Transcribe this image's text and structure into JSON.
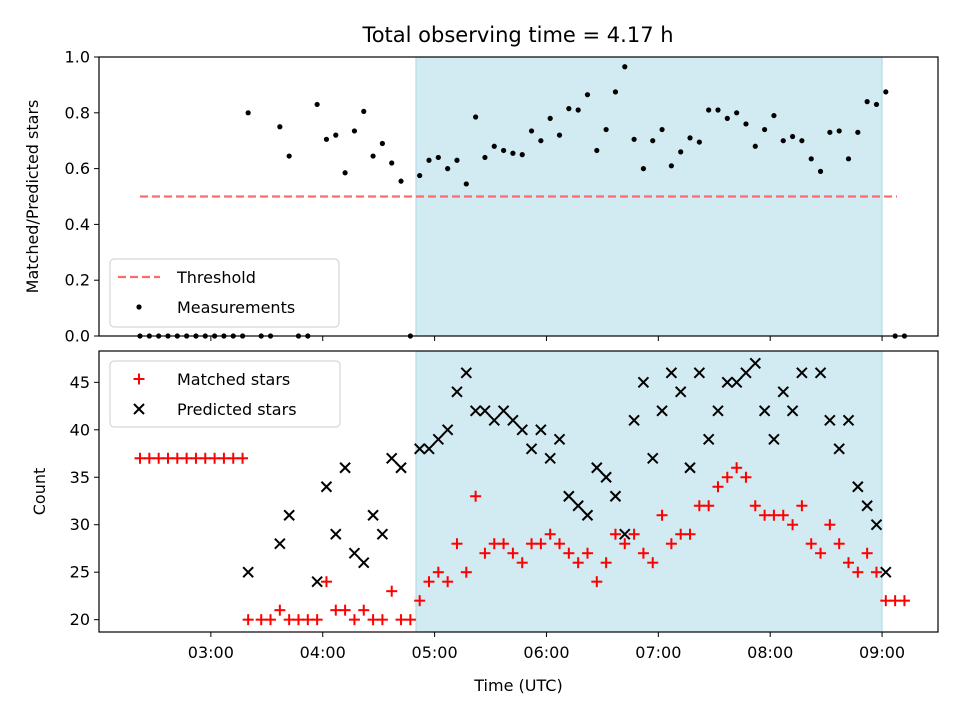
{
  "title": "Total observing time = 4.17 h",
  "colors": {
    "threshold": "#ff6b6b",
    "shade": "#add8e6",
    "measurement": "#000000",
    "matched": "#ff0000",
    "predicted": "#000000"
  },
  "chart_data": [
    {
      "type": "scatter",
      "ylabel": "Matched/Predicted stars",
      "xlabel": "",
      "xlim": [
        "02:00",
        "09:30"
      ],
      "ylim": [
        0,
        1.0
      ],
      "yticks": [
        0.0,
        0.2,
        0.4,
        0.6,
        0.8,
        1.0
      ],
      "ytick_labels": [
        "0.0",
        "0.2",
        "0.4",
        "0.6",
        "0.8",
        "1.0"
      ],
      "shaded_region": [
        "04:50",
        "09:00"
      ],
      "legend_position": "lower-left",
      "threshold": {
        "name": "Threshold",
        "y": 0.5,
        "x_range": [
          "02:22",
          "09:08"
        ]
      },
      "series": [
        {
          "name": "Measurements",
          "points": [
            [
              "02:22",
              0
            ],
            [
              "02:27",
              0
            ],
            [
              "02:32",
              0
            ],
            [
              "02:37",
              0
            ],
            [
              "02:42",
              0
            ],
            [
              "02:47",
              0
            ],
            [
              "02:52",
              0
            ],
            [
              "02:57",
              0
            ],
            [
              "03:02",
              0
            ],
            [
              "03:07",
              0
            ],
            [
              "03:12",
              0
            ],
            [
              "03:17",
              0
            ],
            [
              "03:20",
              0.8
            ],
            [
              "03:27",
              0
            ],
            [
              "03:32",
              0
            ],
            [
              "03:37",
              0.75
            ],
            [
              "03:42",
              0.645
            ],
            [
              "03:47",
              0
            ],
            [
              "03:52",
              0
            ],
            [
              "03:57",
              0.83
            ],
            [
              "04:02",
              0.705
            ],
            [
              "04:07",
              0.72
            ],
            [
              "04:12",
              0.585
            ],
            [
              "04:17",
              0.735
            ],
            [
              "04:22",
              0.805
            ],
            [
              "04:27",
              0.645
            ],
            [
              "04:32",
              0.69
            ],
            [
              "04:37",
              0.62
            ],
            [
              "04:42",
              0.555
            ],
            [
              "04:47",
              0
            ],
            [
              "04:52",
              0.575
            ],
            [
              "04:57",
              0.63
            ],
            [
              "05:02",
              0.64
            ],
            [
              "05:07",
              0.6
            ],
            [
              "05:12",
              0.63
            ],
            [
              "05:17",
              0.545
            ],
            [
              "05:22",
              0.785
            ],
            [
              "05:27",
              0.64
            ],
            [
              "05:32",
              0.68
            ],
            [
              "05:37",
              0.665
            ],
            [
              "05:42",
              0.655
            ],
            [
              "05:47",
              0.65
            ],
            [
              "05:52",
              0.735
            ],
            [
              "05:57",
              0.7
            ],
            [
              "06:02",
              0.78
            ],
            [
              "06:07",
              0.72
            ],
            [
              "06:12",
              0.815
            ],
            [
              "06:17",
              0.81
            ],
            [
              "06:22",
              0.865
            ],
            [
              "06:27",
              0.665
            ],
            [
              "06:32",
              0.74
            ],
            [
              "06:37",
              0.875
            ],
            [
              "06:42",
              0.965
            ],
            [
              "06:47",
              0.705
            ],
            [
              "06:52",
              0.6
            ],
            [
              "06:57",
              0.7
            ],
            [
              "07:02",
              0.74
            ],
            [
              "07:07",
              0.61
            ],
            [
              "07:12",
              0.66
            ],
            [
              "07:17",
              0.71
            ],
            [
              "07:22",
              0.695
            ],
            [
              "07:27",
              0.81
            ],
            [
              "07:32",
              0.81
            ],
            [
              "07:37",
              0.78
            ],
            [
              "07:42",
              0.8
            ],
            [
              "07:47",
              0.76
            ],
            [
              "07:52",
              0.68
            ],
            [
              "07:57",
              0.74
            ],
            [
              "08:02",
              0.79
            ],
            [
              "08:07",
              0.7
            ],
            [
              "08:12",
              0.715
            ],
            [
              "08:17",
              0.7
            ],
            [
              "08:22",
              0.635
            ],
            [
              "08:27",
              0.59
            ],
            [
              "08:32",
              0.73
            ],
            [
              "08:37",
              0.735
            ],
            [
              "08:42",
              0.635
            ],
            [
              "08:47",
              0.73
            ],
            [
              "08:52",
              0.84
            ],
            [
              "08:57",
              0.83
            ],
            [
              "09:02",
              0.875
            ],
            [
              "09:07",
              0
            ],
            [
              "09:12",
              0
            ]
          ]
        }
      ]
    },
    {
      "type": "scatter",
      "ylabel": "Count",
      "xlabel": "Time (UTC)",
      "xlim": [
        "02:00",
        "09:30"
      ],
      "ylim": [
        18.7,
        48.3
      ],
      "yticks": [
        20,
        25,
        30,
        35,
        40,
        45
      ],
      "ytick_labels": [
        "20",
        "25",
        "30",
        "35",
        "40",
        "45"
      ],
      "xticks": [
        "03:00",
        "04:00",
        "05:00",
        "06:00",
        "07:00",
        "08:00",
        "09:00"
      ],
      "xtick_labels": [
        "03:00",
        "04:00",
        "05:00",
        "06:00",
        "07:00",
        "08:00",
        "09:00"
      ],
      "shaded_region": [
        "04:50",
        "09:00"
      ],
      "legend_position": "upper-left",
      "series": [
        {
          "name": "Matched stars",
          "marker": "plus",
          "points": [
            [
              "02:22",
              37
            ],
            [
              "02:27",
              37
            ],
            [
              "02:32",
              37
            ],
            [
              "02:37",
              37
            ],
            [
              "02:42",
              37
            ],
            [
              "02:47",
              37
            ],
            [
              "02:52",
              37
            ],
            [
              "02:57",
              37
            ],
            [
              "03:02",
              37
            ],
            [
              "03:07",
              37
            ],
            [
              "03:12",
              37
            ],
            [
              "03:17",
              37
            ],
            [
              "03:20",
              20
            ],
            [
              "03:27",
              20
            ],
            [
              "03:32",
              20
            ],
            [
              "03:37",
              21
            ],
            [
              "03:42",
              20
            ],
            [
              "03:47",
              20
            ],
            [
              "03:52",
              20
            ],
            [
              "03:57",
              20
            ],
            [
              "04:02",
              24
            ],
            [
              "04:07",
              21
            ],
            [
              "04:12",
              21
            ],
            [
              "04:17",
              20
            ],
            [
              "04:22",
              21
            ],
            [
              "04:27",
              20
            ],
            [
              "04:32",
              20
            ],
            [
              "04:37",
              23
            ],
            [
              "04:42",
              20
            ],
            [
              "04:47",
              20
            ],
            [
              "04:52",
              22
            ],
            [
              "04:57",
              24
            ],
            [
              "05:02",
              25
            ],
            [
              "05:07",
              24
            ],
            [
              "05:12",
              28
            ],
            [
              "05:17",
              25
            ],
            [
              "05:22",
              33
            ],
            [
              "05:27",
              27
            ],
            [
              "05:32",
              28
            ],
            [
              "05:37",
              28
            ],
            [
              "05:42",
              27
            ],
            [
              "05:47",
              26
            ],
            [
              "05:52",
              28
            ],
            [
              "05:57",
              28
            ],
            [
              "06:02",
              29
            ],
            [
              "06:07",
              28
            ],
            [
              "06:12",
              27
            ],
            [
              "06:17",
              26
            ],
            [
              "06:22",
              27
            ],
            [
              "06:27",
              24
            ],
            [
              "06:32",
              26
            ],
            [
              "06:37",
              29
            ],
            [
              "06:42",
              28
            ],
            [
              "06:47",
              29
            ],
            [
              "06:52",
              27
            ],
            [
              "06:57",
              26
            ],
            [
              "07:02",
              31
            ],
            [
              "07:07",
              28
            ],
            [
              "07:12",
              29
            ],
            [
              "07:17",
              29
            ],
            [
              "07:22",
              32
            ],
            [
              "07:27",
              32
            ],
            [
              "07:32",
              34
            ],
            [
              "07:37",
              35
            ],
            [
              "07:42",
              36
            ],
            [
              "07:47",
              35
            ],
            [
              "07:52",
              32
            ],
            [
              "07:57",
              31
            ],
            [
              "08:02",
              31
            ],
            [
              "08:07",
              31
            ],
            [
              "08:12",
              30
            ],
            [
              "08:17",
              32
            ],
            [
              "08:22",
              28
            ],
            [
              "08:27",
              27
            ],
            [
              "08:32",
              30
            ],
            [
              "08:37",
              28
            ],
            [
              "08:42",
              26
            ],
            [
              "08:47",
              25
            ],
            [
              "08:52",
              27
            ],
            [
              "08:57",
              25
            ],
            [
              "09:02",
              22
            ],
            [
              "09:07",
              22
            ],
            [
              "09:12",
              22
            ]
          ]
        },
        {
          "name": "Predicted stars",
          "marker": "x",
          "points": [
            [
              "03:20",
              25
            ],
            [
              "03:37",
              28
            ],
            [
              "03:42",
              31
            ],
            [
              "03:57",
              24
            ],
            [
              "04:02",
              34
            ],
            [
              "04:07",
              29
            ],
            [
              "04:12",
              36
            ],
            [
              "04:17",
              27
            ],
            [
              "04:22",
              26
            ],
            [
              "04:27",
              31
            ],
            [
              "04:32",
              29
            ],
            [
              "04:37",
              37
            ],
            [
              "04:42",
              36
            ],
            [
              "04:52",
              38
            ],
            [
              "04:57",
              38
            ],
            [
              "05:02",
              39
            ],
            [
              "05:07",
              40
            ],
            [
              "05:12",
              44
            ],
            [
              "05:17",
              46
            ],
            [
              "05:22",
              42
            ],
            [
              "05:27",
              42
            ],
            [
              "05:32",
              41
            ],
            [
              "05:37",
              42
            ],
            [
              "05:42",
              41
            ],
            [
              "05:47",
              40
            ],
            [
              "05:52",
              38
            ],
            [
              "05:57",
              40
            ],
            [
              "06:02",
              37
            ],
            [
              "06:07",
              39
            ],
            [
              "06:12",
              33
            ],
            [
              "06:17",
              32
            ],
            [
              "06:22",
              31
            ],
            [
              "06:27",
              36
            ],
            [
              "06:32",
              35
            ],
            [
              "06:37",
              33
            ],
            [
              "06:42",
              29
            ],
            [
              "06:47",
              41
            ],
            [
              "06:52",
              45
            ],
            [
              "06:57",
              37
            ],
            [
              "07:02",
              42
            ],
            [
              "07:07",
              46
            ],
            [
              "07:12",
              44
            ],
            [
              "07:17",
              36
            ],
            [
              "07:22",
              46
            ],
            [
              "07:27",
              39
            ],
            [
              "07:32",
              42
            ],
            [
              "07:37",
              45
            ],
            [
              "07:42",
              45
            ],
            [
              "07:47",
              46
            ],
            [
              "07:52",
              47
            ],
            [
              "07:57",
              42
            ],
            [
              "08:02",
              39
            ],
            [
              "08:07",
              44
            ],
            [
              "08:12",
              42
            ],
            [
              "08:17",
              46
            ],
            [
              "08:27",
              46
            ],
            [
              "08:32",
              41
            ],
            [
              "08:37",
              38
            ],
            [
              "08:42",
              41
            ],
            [
              "08:47",
              34
            ],
            [
              "08:52",
              32
            ],
            [
              "08:57",
              30
            ],
            [
              "09:02",
              25
            ]
          ]
        }
      ]
    }
  ]
}
